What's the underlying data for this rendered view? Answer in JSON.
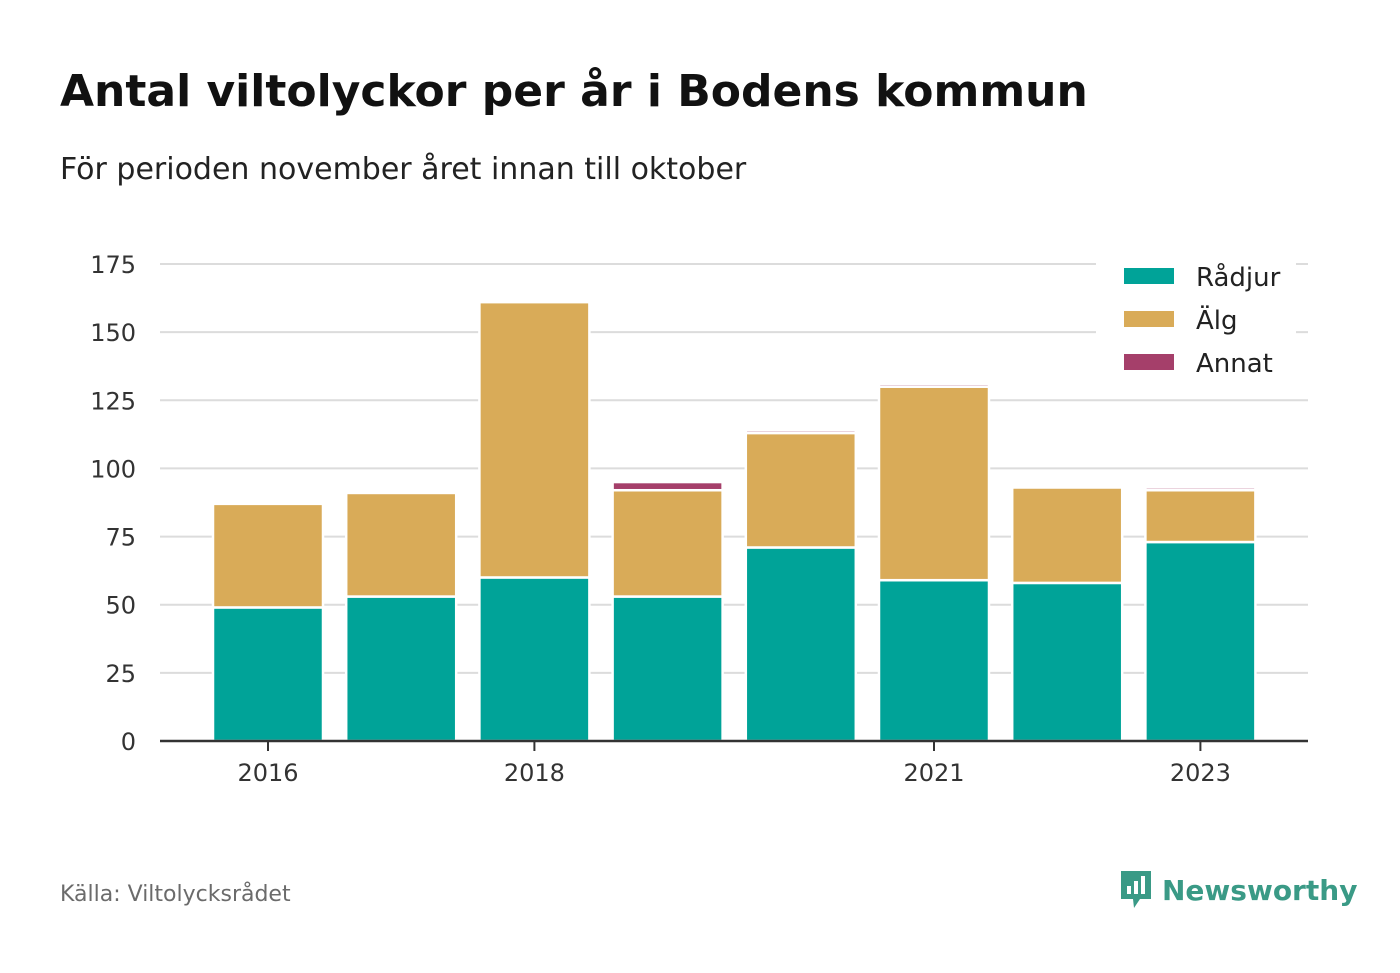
{
  "header": {
    "title": "Antal viltolyckor per år i Bodens kommun",
    "subtitle": "För perioden november året innan till oktober"
  },
  "footer": {
    "source": "Källa: Viltolycksrådet",
    "brand": "Newsworthy"
  },
  "colors": {
    "radjur": "#00a398",
    "alg": "#d9ab58",
    "annat": "#a53f6a",
    "grid": "#dcdcdc",
    "axis": "#333333",
    "brand": "#3a9a86"
  },
  "chart_data": {
    "type": "bar",
    "stacked": true,
    "categories": [
      "2016",
      "2017",
      "2018",
      "2019",
      "2020",
      "2021",
      "2022",
      "2023"
    ],
    "x_tick_labels": [
      "2016",
      "2018",
      "2021",
      "2023"
    ],
    "series": [
      {
        "name": "Rådjur",
        "key": "radjur",
        "values": [
          49,
          53,
          60,
          53,
          71,
          59,
          58,
          73
        ]
      },
      {
        "name": "Älg",
        "key": "alg",
        "values": [
          38,
          38,
          101,
          39,
          42,
          71,
          35,
          19
        ]
      },
      {
        "name": "Annat",
        "key": "annat",
        "values": [
          0,
          0,
          0,
          3,
          1,
          1,
          0,
          1
        ]
      }
    ],
    "ylim": [
      0,
      175
    ],
    "y_ticks": [
      0,
      25,
      50,
      75,
      100,
      125,
      150,
      175
    ],
    "grid": true,
    "legend_position": "top-right"
  }
}
